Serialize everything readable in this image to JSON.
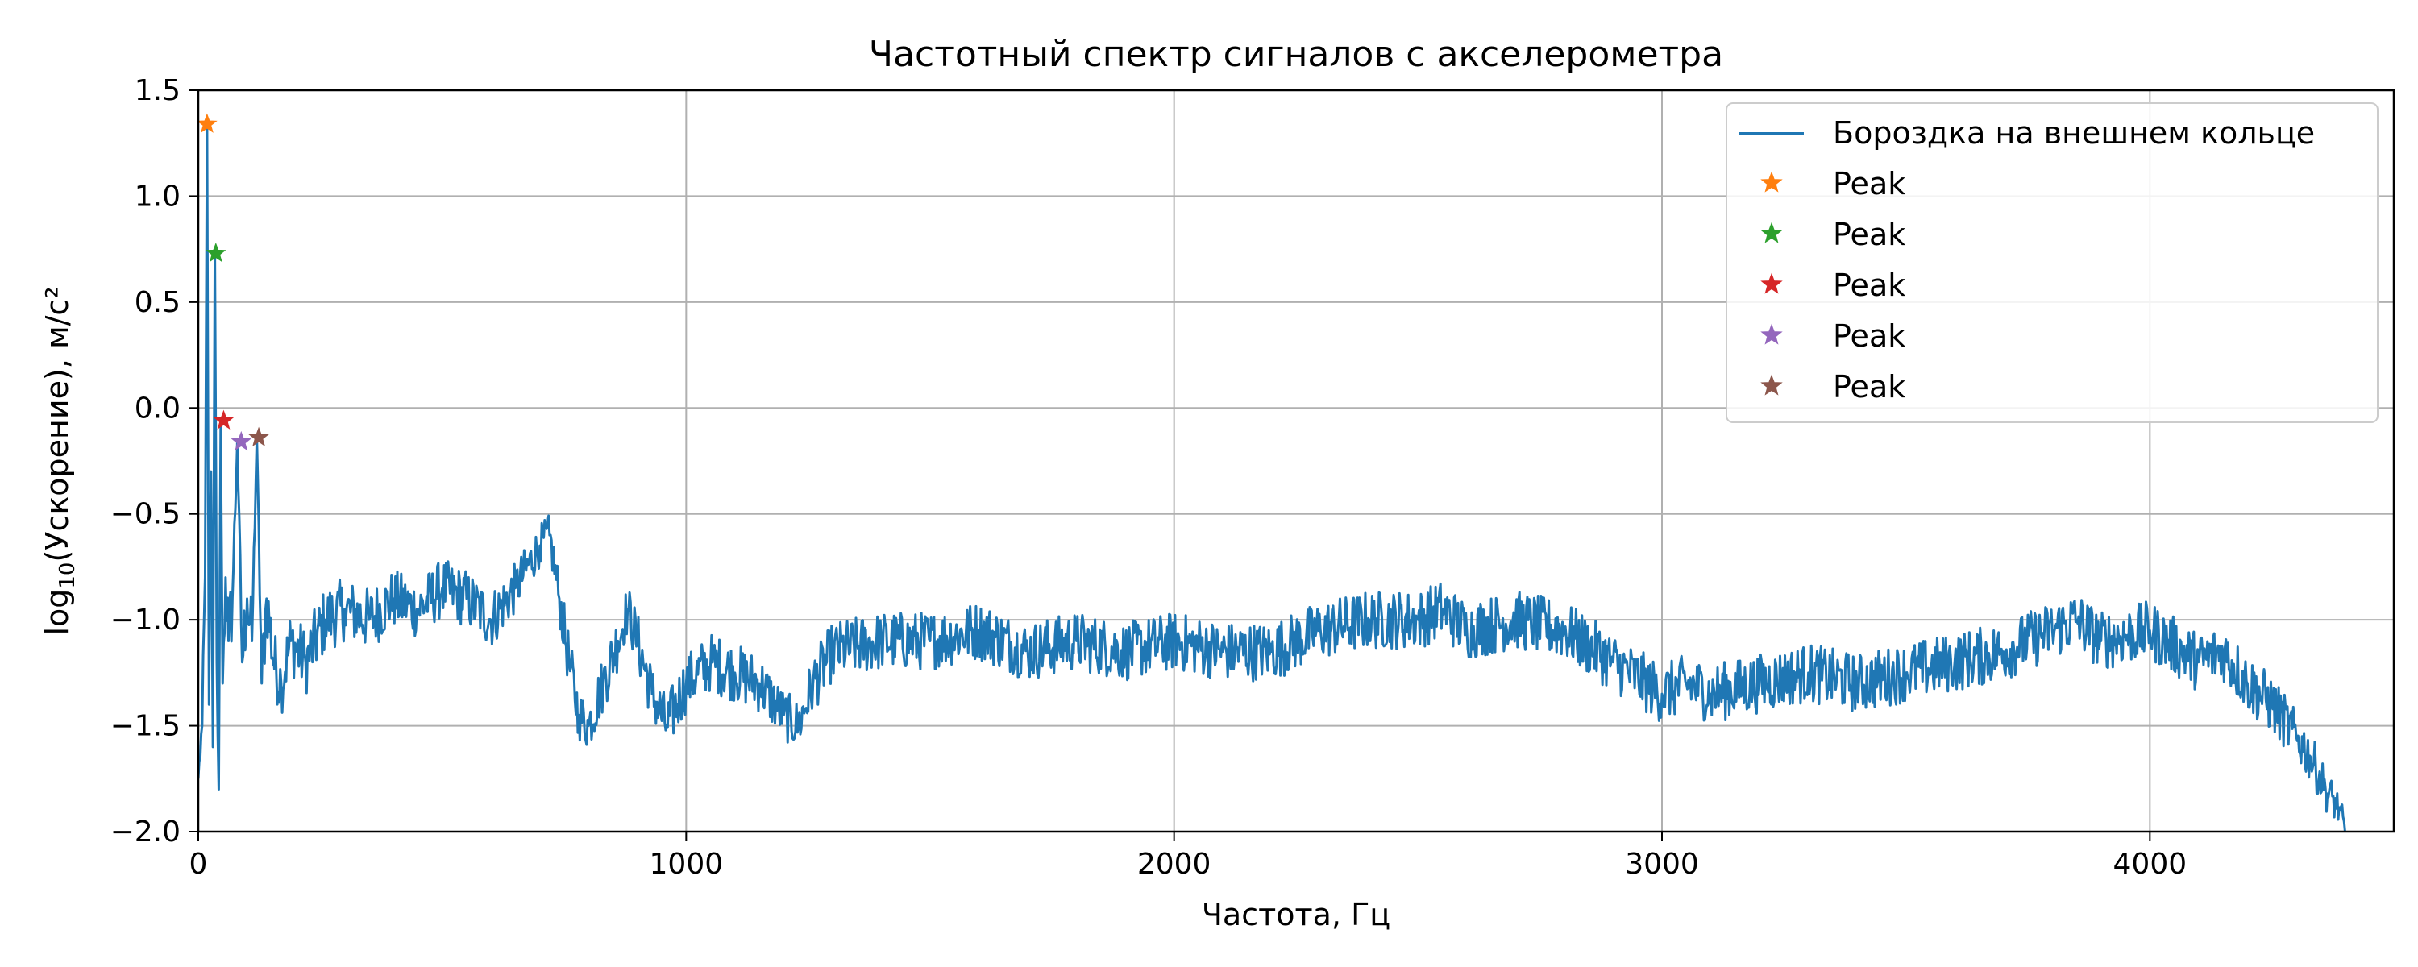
{
  "chart_data": {
    "type": "line",
    "title": "Частотный спектр сигналов с акселерометра",
    "xlabel": "Частота, Гц",
    "ylabel_prefix": "log",
    "ylabel_sub": "10",
    "ylabel_suffix": "(Ускорение), м/с²",
    "xlim": [
      0,
      4500
    ],
    "ylim": [
      -2.0,
      1.5
    ],
    "x_ticks": [
      0,
      1000,
      2000,
      3000,
      4000
    ],
    "x_tick_labels": [
      "0",
      "1000",
      "2000",
      "3000",
      "4000"
    ],
    "y_ticks": [
      1.5,
      1.0,
      0.5,
      0.0,
      -0.5,
      -1.0,
      -1.5,
      -2.0
    ],
    "y_tick_labels": [
      "1.5",
      "1.0",
      "0.5",
      "0.0",
      "−0.5",
      "−1.0",
      "−1.5",
      "−2.0"
    ],
    "grid": true,
    "legend_position": "upper right",
    "series": [
      {
        "name": "Бороздка на внешнем кольце",
        "color": "#1f77b4",
        "style": "line",
        "x": [
          0,
          8,
          14,
          18,
          22,
          26,
          30,
          34,
          38,
          42,
          46,
          50,
          56,
          62,
          70,
          80,
          90,
          100,
          110,
          120,
          130,
          140,
          155,
          170,
          190,
          220,
          260,
          300,
          350,
          400,
          450,
          500,
          550,
          600,
          650,
          700,
          720,
          740,
          760,
          780,
          800,
          830,
          860,
          880,
          900,
          930,
          960,
          1000,
          1050,
          1100,
          1150,
          1200,
          1230,
          1260,
          1300,
          1400,
          1500,
          1600,
          1700,
          1800,
          1900,
          2000,
          2100,
          2200,
          2300,
          2400,
          2500,
          2550,
          2600,
          2700,
          2800,
          2900,
          3000,
          3050,
          3100,
          3200,
          3300,
          3400,
          3500,
          3600,
          3700,
          3800,
          3850,
          3900,
          4000,
          4100,
          4150,
          4200,
          4250,
          4300,
          4330,
          4360,
          4390,
          4400
        ],
        "y": [
          -1.75,
          -1.5,
          -0.8,
          1.34,
          -1.4,
          -0.3,
          -1.6,
          0.73,
          -1.2,
          -1.8,
          -0.06,
          -1.3,
          -0.8,
          -1.1,
          -0.9,
          -0.16,
          -1.2,
          -0.9,
          -1.1,
          -0.14,
          -1.3,
          -0.9,
          -1.2,
          -1.3,
          -1.1,
          -1.2,
          -1.0,
          -0.95,
          -1.0,
          -0.9,
          -0.95,
          -0.85,
          -0.9,
          -1.0,
          -0.85,
          -0.65,
          -0.6,
          -0.9,
          -1.2,
          -1.45,
          -1.5,
          -1.3,
          -1.1,
          -0.95,
          -1.1,
          -1.35,
          -1.5,
          -1.3,
          -1.2,
          -1.25,
          -1.3,
          -1.45,
          -1.5,
          -1.3,
          -1.15,
          -1.1,
          -1.1,
          -1.05,
          -1.15,
          -1.1,
          -1.15,
          -1.1,
          -1.15,
          -1.15,
          -1.05,
          -1.0,
          -1.0,
          -0.95,
          -1.05,
          -1.0,
          -1.05,
          -1.2,
          -1.35,
          -1.3,
          -1.35,
          -1.3,
          -1.25,
          -1.3,
          -1.25,
          -1.2,
          -1.15,
          -1.05,
          -1.0,
          -1.1,
          -1.05,
          -1.2,
          -1.15,
          -1.3,
          -1.4,
          -1.55,
          -1.65,
          -1.8,
          -1.9,
          -2.0
        ],
        "amplitude": [
          0.05,
          0.1,
          0.1,
          0.0,
          0.15,
          0.15,
          0.15,
          0.0,
          0.2,
          0.1,
          0.0,
          0.15,
          0.18,
          0.18,
          0.2,
          0.0,
          0.2,
          0.18,
          0.18,
          0.0,
          0.2,
          0.18,
          0.16,
          0.16,
          0.16,
          0.16,
          0.16,
          0.15,
          0.15,
          0.14,
          0.14,
          0.14,
          0.14,
          0.14,
          0.12,
          0.1,
          0.1,
          0.12,
          0.14,
          0.12,
          0.12,
          0.14,
          0.14,
          0.12,
          0.14,
          0.14,
          0.14,
          0.14,
          0.14,
          0.14,
          0.14,
          0.12,
          0.12,
          0.14,
          0.14,
          0.14,
          0.14,
          0.14,
          0.14,
          0.14,
          0.14,
          0.14,
          0.14,
          0.14,
          0.14,
          0.14,
          0.14,
          0.14,
          0.14,
          0.14,
          0.14,
          0.14,
          0.14,
          0.14,
          0.14,
          0.14,
          0.14,
          0.14,
          0.14,
          0.14,
          0.14,
          0.14,
          0.14,
          0.14,
          0.14,
          0.14,
          0.14,
          0.14,
          0.14,
          0.12,
          0.12,
          0.1,
          0.08,
          0.05
        ]
      },
      {
        "name": "Peak",
        "color": "#ff7f0e",
        "style": "star",
        "x": [
          18
        ],
        "y": [
          1.34
        ]
      },
      {
        "name": "Peak",
        "color": "#2ca02c",
        "style": "star",
        "x": [
          36
        ],
        "y": [
          0.73
        ]
      },
      {
        "name": "Peak",
        "color": "#d62728",
        "style": "star",
        "x": [
          52
        ],
        "y": [
          -0.06
        ]
      },
      {
        "name": "Peak",
        "color": "#9467bd",
        "style": "star",
        "x": [
          88
        ],
        "y": [
          -0.16
        ]
      },
      {
        "name": "Peak",
        "color": "#8c564b",
        "style": "star",
        "x": [
          124
        ],
        "y": [
          -0.14
        ]
      }
    ]
  }
}
